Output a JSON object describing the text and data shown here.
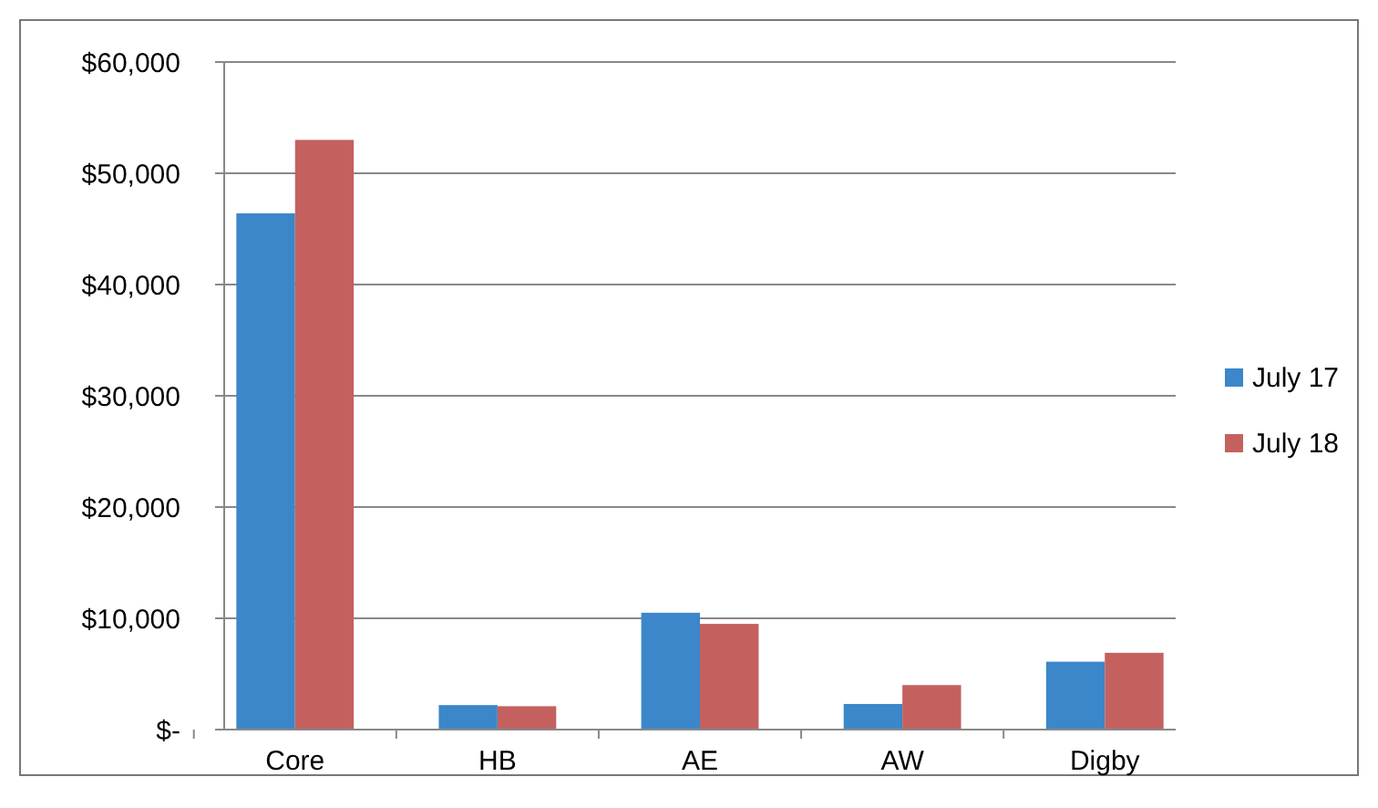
{
  "chart_data": {
    "type": "bar",
    "categories": [
      "Core",
      "HB",
      "AE",
      "AW",
      "Digby"
    ],
    "series": [
      {
        "name": "July 17",
        "color": "#3b87c9",
        "values": [
          46400,
          2200,
          10500,
          2300,
          6100
        ]
      },
      {
        "name": "July 18",
        "color": "#c4615f",
        "values": [
          53000,
          2100,
          9500,
          4000,
          6900
        ]
      }
    ],
    "ylim": [
      0,
      60000
    ],
    "yticks": [
      {
        "value": 0,
        "label": "$-"
      },
      {
        "value": 10000,
        "label": "$10,000"
      },
      {
        "value": 20000,
        "label": "$20,000"
      },
      {
        "value": 30000,
        "label": "$30,000"
      },
      {
        "value": 40000,
        "label": "$40,000"
      },
      {
        "value": 50000,
        "label": "$50,000"
      },
      {
        "value": 60000,
        "label": "$60,000"
      }
    ],
    "grid": "y",
    "legend": "right"
  }
}
